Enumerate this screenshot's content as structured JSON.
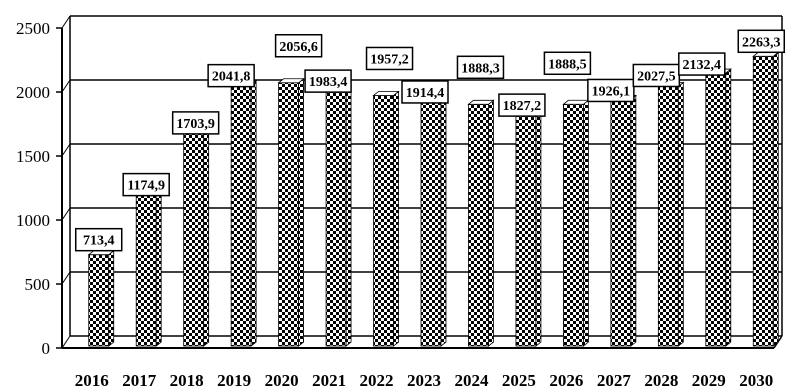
{
  "chart_data": {
    "type": "bar",
    "categories": [
      "2016",
      "2017",
      "2018",
      "2019",
      "2020",
      "2021",
      "2022",
      "2023",
      "2024",
      "2025",
      "2026",
      "2027",
      "2028",
      "2029",
      "2030"
    ],
    "values": [
      713.4,
      1174.9,
      1703.9,
      2041.8,
      2056.6,
      1983.4,
      1957.2,
      1914.4,
      1888.3,
      1827.2,
      1888.5,
      1926.1,
      2027.5,
      2132.4,
      2263.3
    ],
    "value_labels": [
      "713,4",
      "1174,9",
      "1703,9",
      "2041,8",
      "2056,6",
      "1983,4",
      "1957,2",
      "1914,4",
      "1888,3",
      "1827,2",
      "1888,5",
      "1926,1",
      "2027,5",
      "2132,4",
      "2263,3"
    ],
    "ylim": [
      0,
      2500
    ],
    "yticks": [
      0,
      500,
      1000,
      1500,
      2000,
      2500
    ],
    "grid": true,
    "bar_fill": "checkerboard",
    "colors": {
      "bar_dark": "#000000",
      "bar_light": "#ffffff",
      "grid": "#000000",
      "background": "#ffffff"
    }
  }
}
